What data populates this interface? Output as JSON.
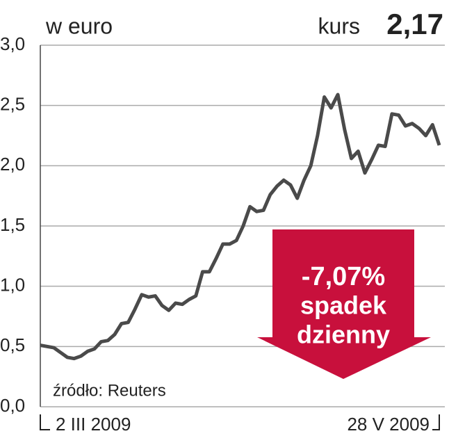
{
  "chart_data": {
    "type": "line",
    "title": "w euro",
    "annotations": {
      "current_label": "kurs",
      "current_value": "2,17",
      "change": "-7,07%",
      "change_line1": "spadek",
      "change_line2": "dzienny",
      "source": "źródło: Reuters"
    },
    "categories": [
      "2 III 2009",
      null,
      null,
      null,
      null,
      null,
      null,
      null,
      null,
      null,
      null,
      null,
      null,
      null,
      null,
      null,
      null,
      null,
      null,
      null,
      null,
      null,
      null,
      null,
      null,
      null,
      null,
      null,
      null,
      null,
      null,
      null,
      null,
      null,
      null,
      null,
      null,
      null,
      null,
      null,
      null,
      null,
      null,
      null,
      null,
      null,
      null,
      null,
      null,
      null,
      null,
      null,
      null,
      null,
      null,
      null,
      null,
      null,
      null,
      "28 V 2009"
    ],
    "series": [
      {
        "name": "kurs",
        "color": "#4a4a4a",
        "values": [
          0.51,
          0.5,
          0.49,
          0.45,
          0.41,
          0.4,
          0.42,
          0.46,
          0.48,
          0.54,
          0.55,
          0.6,
          0.69,
          0.7,
          0.81,
          0.93,
          0.91,
          0.92,
          0.84,
          0.8,
          0.86,
          0.85,
          0.89,
          0.92,
          1.12,
          1.12,
          1.23,
          1.35,
          1.35,
          1.38,
          1.5,
          1.66,
          1.62,
          1.63,
          1.76,
          1.83,
          1.88,
          1.84,
          1.73,
          1.88,
          2.0,
          2.25,
          2.57,
          2.48,
          2.59,
          2.3,
          2.06,
          2.12,
          1.94,
          2.05,
          2.17,
          2.16,
          2.43,
          2.42,
          2.33,
          2.35,
          2.31,
          2.25,
          2.34,
          2.17
        ]
      }
    ],
    "ylim": [
      0,
      3
    ],
    "yticks": [
      {
        "value": 0,
        "label": "0,0"
      },
      {
        "value": 0.5,
        "label": "0,5"
      },
      {
        "value": 1,
        "label": "1,0"
      },
      {
        "value": 1.5,
        "label": "1,5"
      },
      {
        "value": 2,
        "label": "2,0"
      },
      {
        "value": 2.5,
        "label": "2,5"
      },
      {
        "value": 3,
        "label": "3,0"
      }
    ],
    "grid": true,
    "arrow_color": "#c8103c"
  }
}
